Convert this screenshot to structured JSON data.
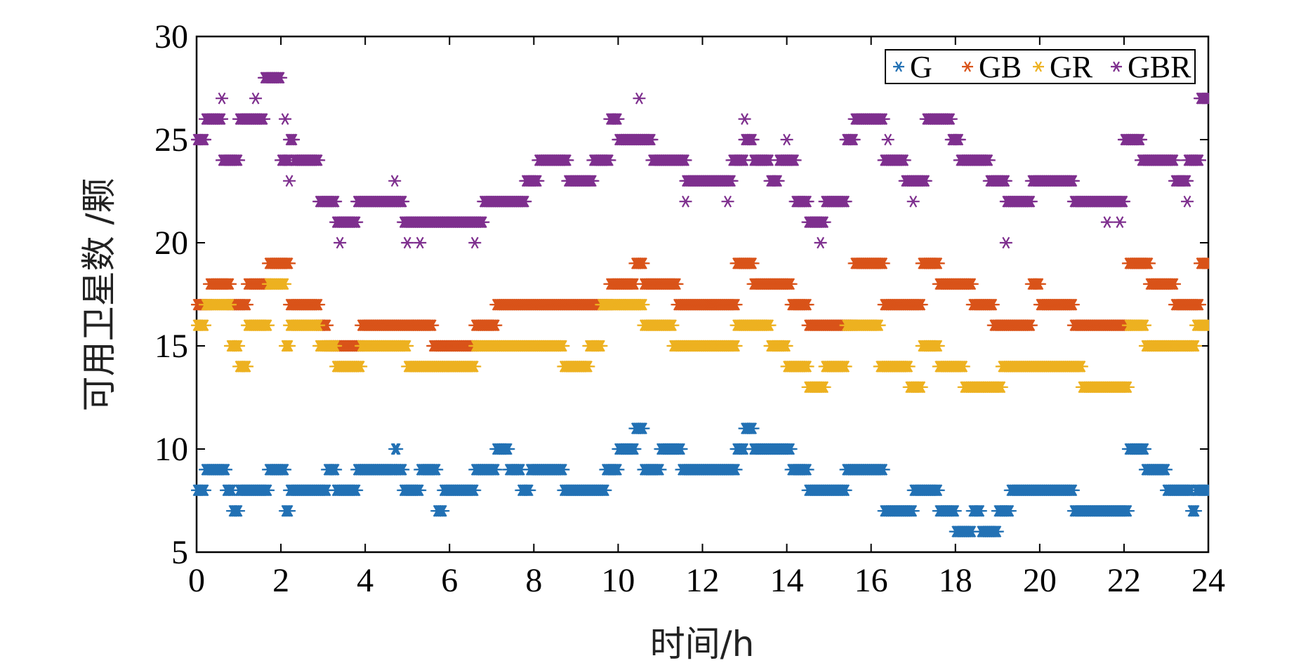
{
  "chart_data": {
    "type": "scatter",
    "title": "",
    "xlabel": "时间/h",
    "ylabel": "可用卫星数 /颗",
    "xlim": [
      0,
      24
    ],
    "ylim": [
      5,
      30
    ],
    "xticks": [
      "0",
      "2",
      "4",
      "6",
      "8",
      "10",
      "12",
      "14",
      "16",
      "18",
      "20",
      "22",
      "24"
    ],
    "yticks": [
      "5",
      "10",
      "15",
      "20",
      "25",
      "30"
    ],
    "legend_position": "top-right",
    "marker": "*",
    "series": [
      {
        "name": "G",
        "color": "#2271b4",
        "segments": [
          [
            0,
            0.2,
            8
          ],
          [
            0.2,
            0.7,
            9
          ],
          [
            0.7,
            0.85,
            8
          ],
          [
            0.85,
            1.0,
            7
          ],
          [
            1.0,
            1.7,
            8
          ],
          [
            1.7,
            2.1,
            9
          ],
          [
            2.1,
            2.2,
            7
          ],
          [
            2.2,
            3.1,
            8
          ],
          [
            3.1,
            3.3,
            9
          ],
          [
            3.3,
            3.8,
            8
          ],
          [
            3.8,
            4.7,
            9
          ],
          [
            4.7,
            4.75,
            10
          ],
          [
            4.75,
            4.9,
            9
          ],
          [
            4.9,
            5.3,
            8
          ],
          [
            5.3,
            5.7,
            9
          ],
          [
            5.7,
            5.85,
            7
          ],
          [
            5.85,
            6.6,
            8
          ],
          [
            6.6,
            7.1,
            9
          ],
          [
            7.1,
            7.4,
            10
          ],
          [
            7.4,
            7.7,
            9
          ],
          [
            7.7,
            7.9,
            8
          ],
          [
            7.9,
            8.7,
            9
          ],
          [
            8.7,
            9.7,
            8
          ],
          [
            9.7,
            10.0,
            9
          ],
          [
            10.0,
            10.4,
            10
          ],
          [
            10.4,
            10.6,
            11
          ],
          [
            10.6,
            11.0,
            9
          ],
          [
            11.0,
            11.5,
            10
          ],
          [
            11.5,
            12.8,
            9
          ],
          [
            12.8,
            13.0,
            10
          ],
          [
            13.0,
            13.2,
            11
          ],
          [
            13.2,
            14.1,
            10
          ],
          [
            14.1,
            14.5,
            9
          ],
          [
            14.5,
            15.4,
            8
          ],
          [
            15.4,
            16.3,
            9
          ],
          [
            16.3,
            17.0,
            7
          ],
          [
            17.0,
            17.6,
            8
          ],
          [
            17.6,
            18.0,
            7
          ],
          [
            18.0,
            18.4,
            6
          ],
          [
            18.4,
            18.6,
            7
          ],
          [
            18.6,
            19.0,
            6
          ],
          [
            19.0,
            19.3,
            7
          ],
          [
            19.3,
            20.8,
            8
          ],
          [
            20.8,
            22.1,
            7
          ],
          [
            22.1,
            22.5,
            10
          ],
          [
            22.5,
            23.0,
            9
          ],
          [
            23.0,
            23.6,
            8
          ],
          [
            23.6,
            23.7,
            7
          ],
          [
            23.7,
            24.0,
            8
          ]
        ]
      },
      {
        "name": "GB",
        "color": "#d95319",
        "segments": [
          [
            0,
            0.3,
            17
          ],
          [
            0.3,
            0.8,
            18
          ],
          [
            0.8,
            1.2,
            17
          ],
          [
            1.2,
            1.7,
            18
          ],
          [
            1.7,
            2.2,
            19
          ],
          [
            2.2,
            2.9,
            17
          ],
          [
            2.9,
            3.1,
            16
          ],
          [
            3.1,
            3.9,
            15
          ],
          [
            3.9,
            5.2,
            16
          ],
          [
            5.2,
            5.6,
            16
          ],
          [
            5.6,
            6.6,
            15
          ],
          [
            6.6,
            7.1,
            16
          ],
          [
            7.1,
            9.8,
            17
          ],
          [
            9.8,
            10.4,
            18
          ],
          [
            10.4,
            10.6,
            19
          ],
          [
            10.6,
            11.4,
            18
          ],
          [
            11.4,
            12.8,
            17
          ],
          [
            12.8,
            13.2,
            19
          ],
          [
            13.2,
            14.1,
            18
          ],
          [
            14.1,
            14.5,
            17
          ],
          [
            14.5,
            15.6,
            16
          ],
          [
            15.6,
            16.3,
            19
          ],
          [
            16.3,
            17.2,
            17
          ],
          [
            17.2,
            17.6,
            19
          ],
          [
            17.6,
            18.4,
            18
          ],
          [
            18.4,
            18.9,
            17
          ],
          [
            18.9,
            19.8,
            16
          ],
          [
            19.8,
            20.0,
            18
          ],
          [
            20.0,
            20.8,
            17
          ],
          [
            20.8,
            22.1,
            16
          ],
          [
            22.1,
            22.6,
            19
          ],
          [
            22.6,
            23.2,
            18
          ],
          [
            23.2,
            23.8,
            17
          ],
          [
            23.8,
            24.0,
            19
          ]
        ]
      },
      {
        "name": "GR",
        "color": "#edb120",
        "segments": [
          [
            0,
            0.2,
            16
          ],
          [
            0.2,
            0.8,
            17
          ],
          [
            0.8,
            1.0,
            15
          ],
          [
            1.0,
            1.2,
            14
          ],
          [
            1.2,
            1.7,
            16
          ],
          [
            1.7,
            2.1,
            18
          ],
          [
            2.1,
            2.2,
            15
          ],
          [
            2.2,
            2.9,
            16
          ],
          [
            2.9,
            3.3,
            15
          ],
          [
            3.3,
            3.9,
            14
          ],
          [
            3.9,
            5.0,
            15
          ],
          [
            5.0,
            5.9,
            14
          ],
          [
            5.9,
            6.6,
            14
          ],
          [
            6.6,
            8.7,
            15
          ],
          [
            8.7,
            9.3,
            14
          ],
          [
            9.3,
            9.6,
            15
          ],
          [
            9.6,
            10.1,
            17
          ],
          [
            10.1,
            10.6,
            17
          ],
          [
            10.6,
            11.3,
            16
          ],
          [
            11.3,
            12.8,
            15
          ],
          [
            12.8,
            13.6,
            16
          ],
          [
            13.6,
            14.0,
            15
          ],
          [
            14.0,
            14.5,
            14
          ],
          [
            14.5,
            14.9,
            13
          ],
          [
            14.9,
            15.4,
            14
          ],
          [
            15.4,
            16.2,
            16
          ],
          [
            16.2,
            16.9,
            14
          ],
          [
            16.9,
            17.2,
            13
          ],
          [
            17.2,
            17.6,
            15
          ],
          [
            17.6,
            18.2,
            14
          ],
          [
            18.2,
            18.6,
            13
          ],
          [
            18.6,
            19.1,
            13
          ],
          [
            19.1,
            21.0,
            14
          ],
          [
            21.0,
            22.1,
            13
          ],
          [
            22.1,
            22.5,
            16
          ],
          [
            22.5,
            23.2,
            15
          ],
          [
            23.2,
            23.7,
            15
          ],
          [
            23.7,
            24.0,
            16
          ]
        ]
      },
      {
        "name": "GBR",
        "color": "#7e2f8e",
        "segments": [
          [
            0,
            0.2,
            25
          ],
          [
            0.2,
            0.6,
            26
          ],
          [
            0.6,
            1.0,
            24
          ],
          [
            1.0,
            1.6,
            26
          ],
          [
            1.6,
            2.0,
            28
          ],
          [
            2.0,
            2.2,
            24
          ],
          [
            2.2,
            2.3,
            25
          ],
          [
            2.3,
            2.9,
            24
          ],
          [
            2.9,
            3.3,
            22
          ],
          [
            3.3,
            3.8,
            21
          ],
          [
            3.8,
            4.9,
            22
          ],
          [
            4.9,
            5.9,
            21
          ],
          [
            5.9,
            6.8,
            21
          ],
          [
            6.8,
            7.8,
            22
          ],
          [
            7.8,
            8.1,
            23
          ],
          [
            8.1,
            8.8,
            24
          ],
          [
            8.8,
            9.4,
            23
          ],
          [
            9.4,
            9.8,
            24
          ],
          [
            9.8,
            10.0,
            26
          ],
          [
            10.0,
            10.8,
            25
          ],
          [
            10.8,
            11.6,
            24
          ],
          [
            11.6,
            12.7,
            23
          ],
          [
            12.7,
            13.0,
            24
          ],
          [
            13.0,
            13.2,
            25
          ],
          [
            13.2,
            13.6,
            24
          ],
          [
            13.6,
            13.8,
            23
          ],
          [
            13.8,
            14.2,
            24
          ],
          [
            14.2,
            14.5,
            22
          ],
          [
            14.5,
            14.9,
            21
          ],
          [
            14.9,
            15.4,
            22
          ],
          [
            15.4,
            15.6,
            25
          ],
          [
            15.6,
            16.3,
            26
          ],
          [
            16.3,
            16.8,
            24
          ],
          [
            16.8,
            17.3,
            23
          ],
          [
            17.3,
            17.9,
            26
          ],
          [
            17.9,
            18.1,
            25
          ],
          [
            18.1,
            18.8,
            24
          ],
          [
            18.8,
            19.2,
            23
          ],
          [
            19.2,
            19.8,
            22
          ],
          [
            19.8,
            20.8,
            23
          ],
          [
            20.8,
            22.0,
            22
          ],
          [
            22.0,
            22.4,
            25
          ],
          [
            22.4,
            23.2,
            24
          ],
          [
            23.2,
            23.5,
            23
          ],
          [
            23.5,
            23.8,
            24
          ],
          [
            23.8,
            24.0,
            27
          ]
        ],
        "points": [
          [
            0.6,
            27
          ],
          [
            1.4,
            27
          ],
          [
            2.1,
            26
          ],
          [
            2.2,
            23
          ],
          [
            3.4,
            20
          ],
          [
            4.7,
            23
          ],
          [
            5.0,
            20
          ],
          [
            5.3,
            20
          ],
          [
            6.6,
            20
          ],
          [
            10.5,
            27
          ],
          [
            11.6,
            22
          ],
          [
            12.6,
            22
          ],
          [
            13.0,
            26
          ],
          [
            14.0,
            25
          ],
          [
            14.8,
            20
          ],
          [
            16.4,
            25
          ],
          [
            17.0,
            22
          ],
          [
            19.2,
            20
          ],
          [
            21.6,
            21
          ],
          [
            21.9,
            21
          ],
          [
            23.5,
            22
          ]
        ]
      }
    ]
  }
}
